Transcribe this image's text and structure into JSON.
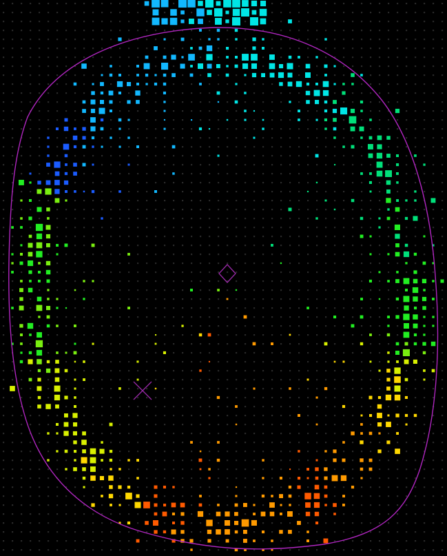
{
  "display": {
    "background": "#000000",
    "grid_dot_color": "#2a2a2a",
    "outline_color": "#b026c0",
    "marker_color": "#9a2aa8"
  },
  "markers": [
    {
      "name": "diamond-marker"
    },
    {
      "name": "x-marker"
    }
  ],
  "color_scale": [
    "#1b5cff",
    "#12b8ff",
    "#00e6e6",
    "#00e07a",
    "#22ee22",
    "#7aee10",
    "#d8f000",
    "#ffd800",
    "#ff9a00",
    "#ff5a00",
    "#e02000"
  ]
}
